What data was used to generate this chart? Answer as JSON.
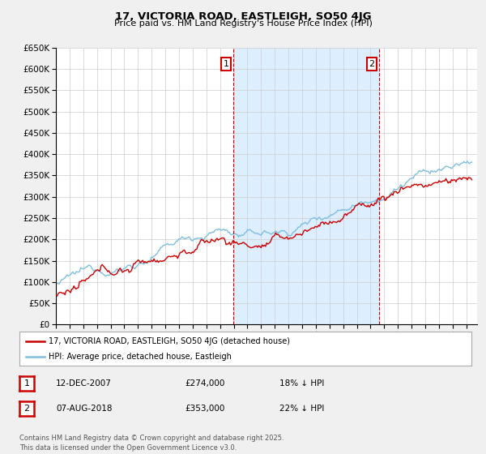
{
  "title_line1": "17, VICTORIA ROAD, EASTLEIGH, SO50 4JG",
  "title_line2": "Price paid vs. HM Land Registry's House Price Index (HPI)",
  "ytick_values": [
    0,
    50000,
    100000,
    150000,
    200000,
    250000,
    300000,
    350000,
    400000,
    450000,
    500000,
    550000,
    600000,
    650000
  ],
  "xlim_start": 1995.0,
  "xlim_end": 2025.8,
  "ylim_min": 0,
  "ylim_max": 650000,
  "hpi_color": "#7fbfdf",
  "price_color": "#cc0000",
  "vline1_x": 2007.95,
  "vline2_x": 2018.6,
  "annotation1_label": "1",
  "annotation2_label": "2",
  "legend_entry1": "17, VICTORIA ROAD, EASTLEIGH, SO50 4JG (detached house)",
  "legend_entry2": "HPI: Average price, detached house, Eastleigh",
  "table_row1": [
    "1",
    "12-DEC-2007",
    "£274,000",
    "18% ↓ HPI"
  ],
  "table_row2": [
    "2",
    "07-AUG-2018",
    "£353,000",
    "22% ↓ HPI"
  ],
  "footnote": "Contains HM Land Registry data © Crown copyright and database right 2025.\nThis data is licensed under the Open Government Licence v3.0.",
  "background_color": "#f0f0f0",
  "plot_bg_color": "#ffffff",
  "grid_color": "#cccccc",
  "shade_color": "#ddeeff"
}
